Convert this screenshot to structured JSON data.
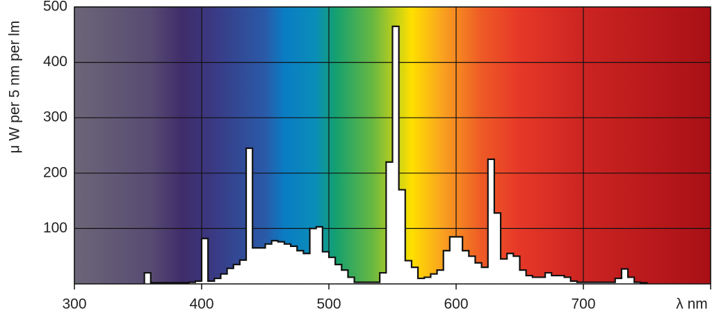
{
  "chart_data": {
    "type": "histogram",
    "ylabel": "μ W per 5 nm per lm",
    "bins": [
      355,
      360,
      365,
      370,
      375,
      380,
      385,
      390,
      395,
      400,
      405,
      410,
      415,
      420,
      425,
      430,
      435,
      440,
      445,
      450,
      455,
      460,
      465,
      470,
      475,
      480,
      485,
      490,
      495,
      500,
      505,
      510,
      515,
      520,
      525,
      530,
      535,
      540,
      545,
      550,
      555,
      560,
      565,
      570,
      575,
      580,
      585,
      590,
      595,
      600,
      605,
      610,
      615,
      620,
      625,
      630,
      635,
      640,
      645,
      650,
      655,
      660,
      665,
      670,
      675,
      680,
      685,
      690,
      695,
      700,
      705,
      710,
      715,
      720,
      725,
      730,
      735,
      740,
      745,
      750
    ],
    "values": [
      20,
      2,
      2,
      2,
      2,
      2,
      2,
      3,
      5,
      82,
      5,
      10,
      18,
      28,
      35,
      43,
      245,
      65,
      65,
      72,
      78,
      76,
      72,
      68,
      60,
      55,
      100,
      103,
      58,
      48,
      35,
      25,
      12,
      3,
      3,
      3,
      3,
      20,
      220,
      465,
      170,
      42,
      30,
      10,
      12,
      18,
      25,
      60,
      85,
      85,
      60,
      50,
      38,
      30,
      225,
      128,
      45,
      55,
      50,
      25,
      15,
      12,
      12,
      20,
      15,
      15,
      12,
      5,
      3,
      3,
      3,
      3,
      3,
      3,
      10,
      27,
      12,
      3,
      2
    ],
    "color": "#ffffff",
    "xlim": [
      300,
      800
    ],
    "xticks": [
      300,
      400,
      500,
      600,
      700,
      {
        "value": 800,
        "label": "λ nm"
      }
    ],
    "ylim": [
      0,
      500
    ],
    "yticks": [
      100,
      200,
      300,
      400,
      500
    ],
    "grid": true
  }
}
